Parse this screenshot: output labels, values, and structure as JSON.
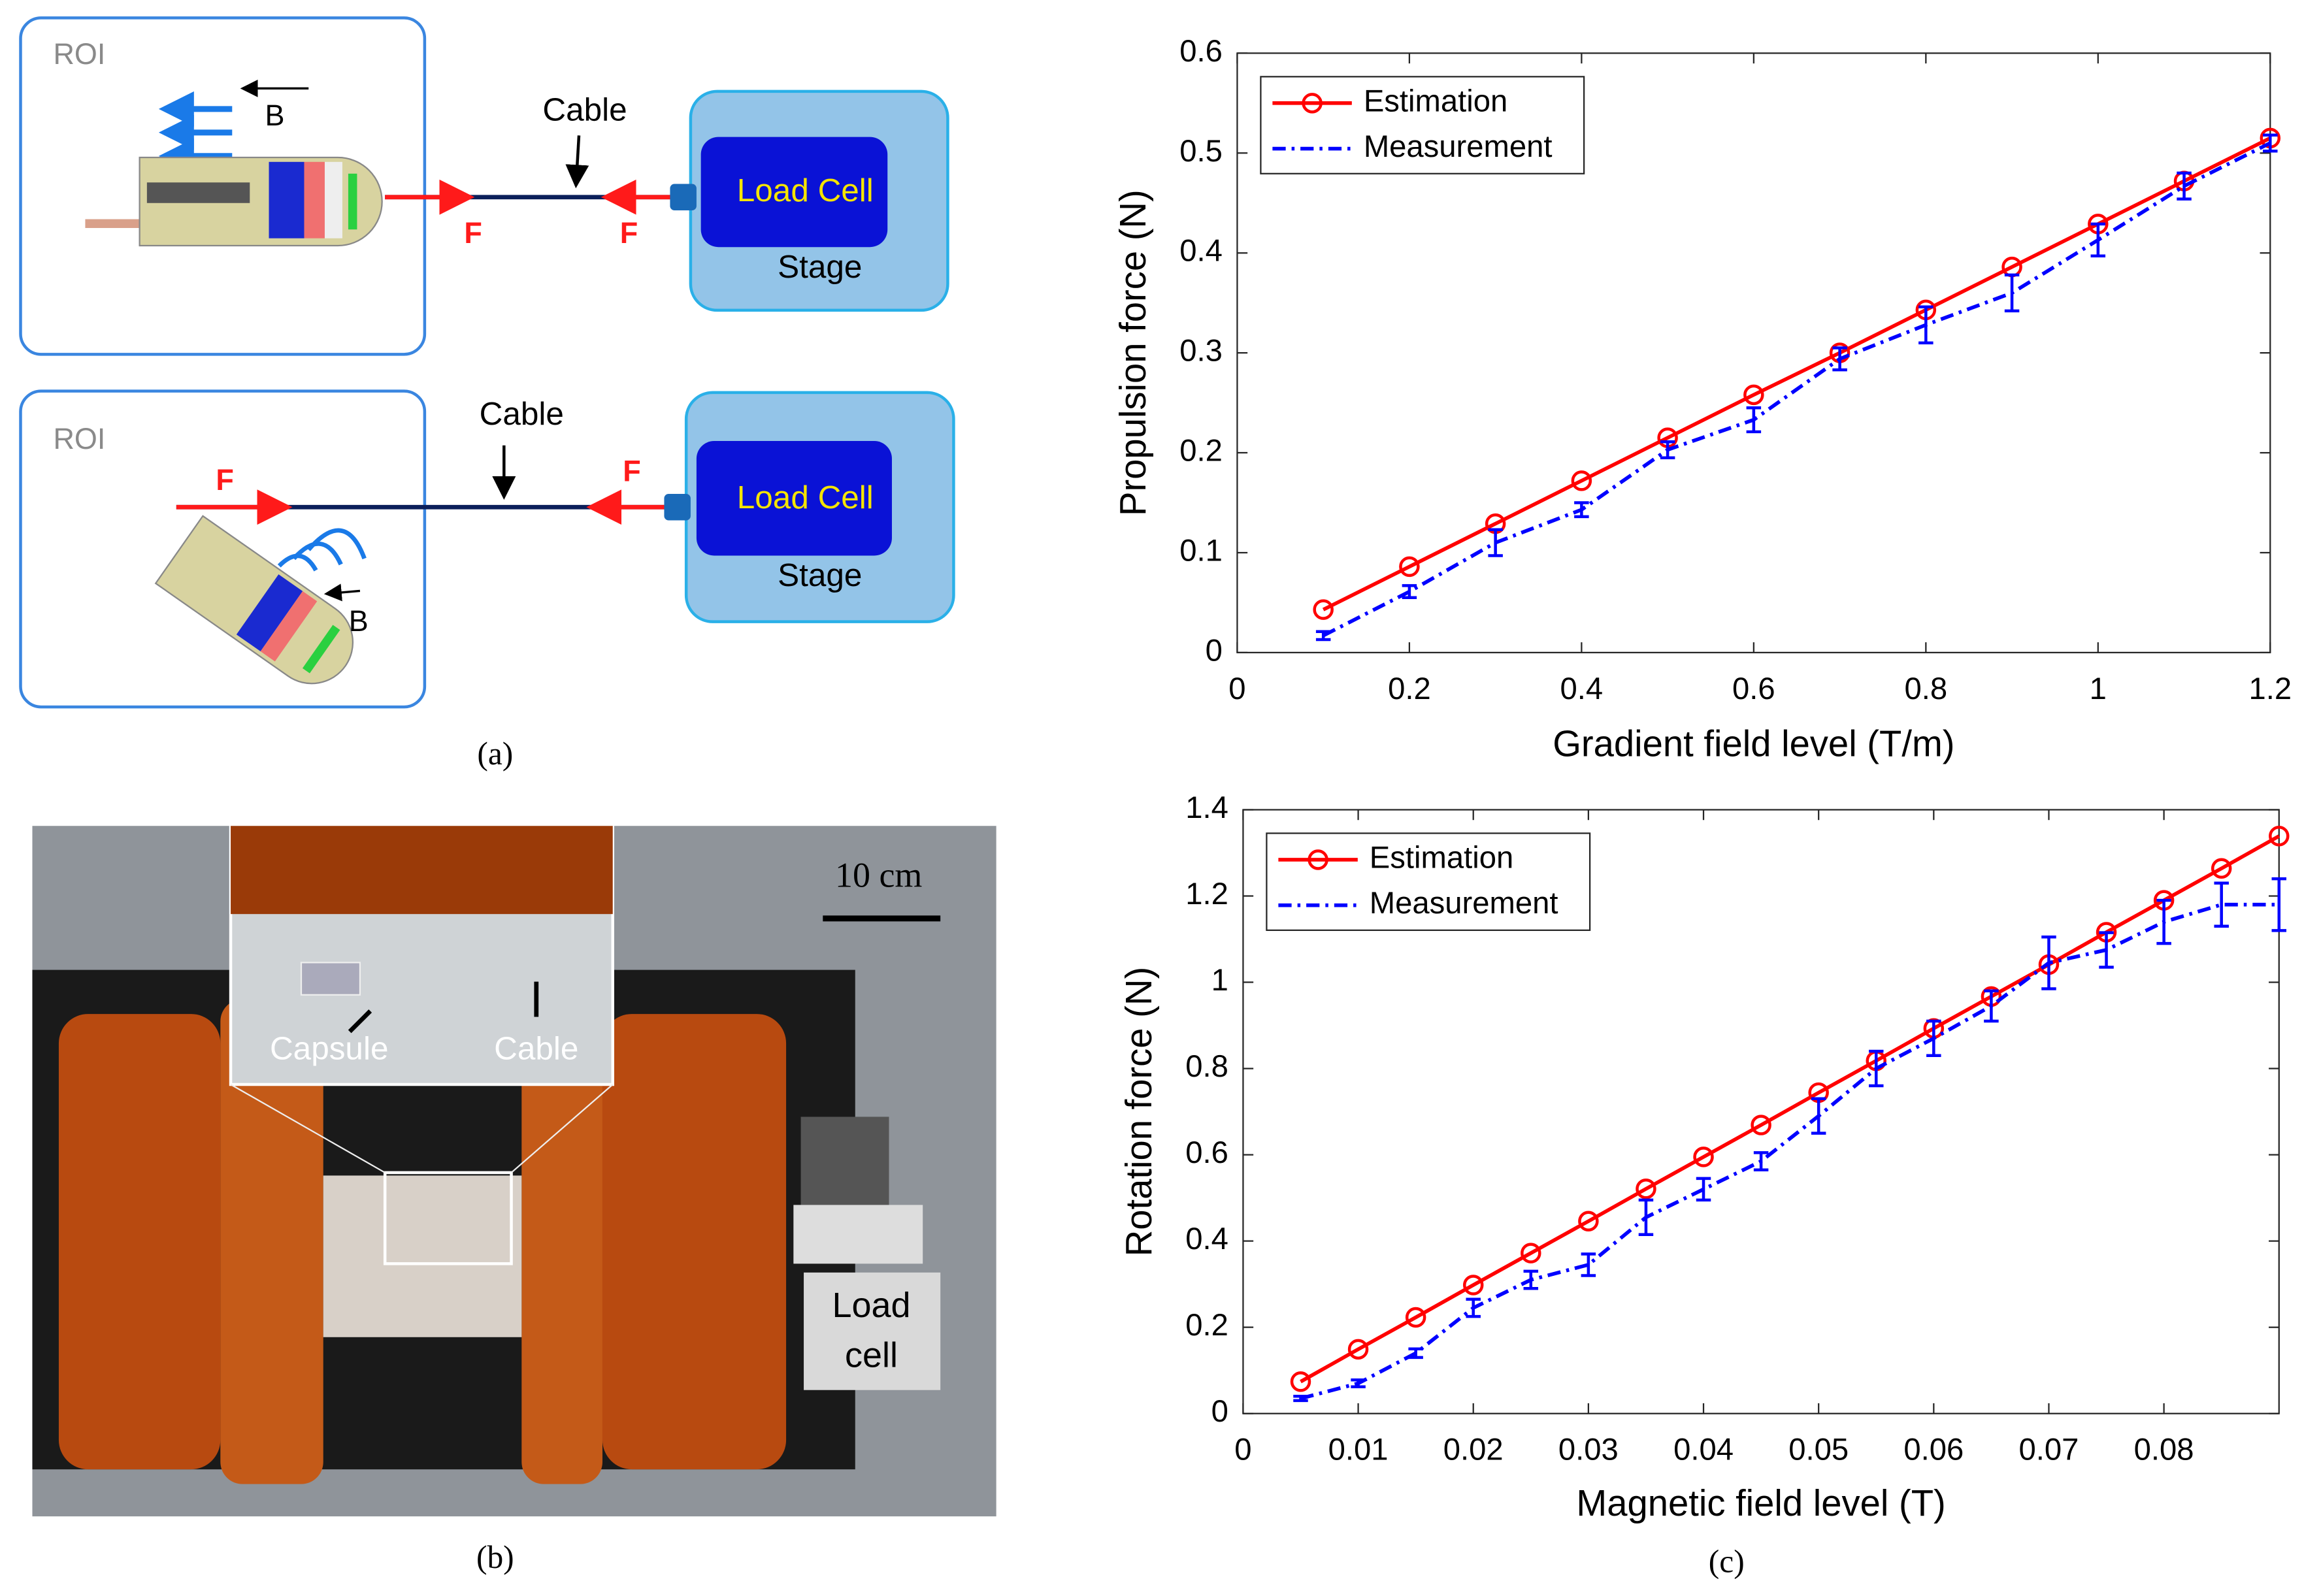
{
  "panels": {
    "a": "(a)",
    "b": "(b)",
    "c": "(c)"
  },
  "diagram": {
    "top": {
      "roi": "ROI",
      "field": "B",
      "cable": "Cable",
      "force_left": "F",
      "force_right": "F",
      "load_cell": "Load Cell",
      "stage": "Stage"
    },
    "bottom": {
      "roi": "ROI",
      "field": "B",
      "cable": "Cable",
      "force_left": "F",
      "force_right": "F",
      "load_cell": "Load Cell",
      "stage": "Stage"
    }
  },
  "photo": {
    "scale_bar": "10 cm",
    "capsule": "Capsule",
    "cable": "Cable",
    "load_cell": [
      "Load",
      "cell"
    ]
  },
  "chart_data": [
    {
      "type": "line",
      "xlabel": "Gradient field level (T/m)",
      "ylabel": "Propulsion force (N)",
      "x": [
        0.1,
        0.2,
        0.3,
        0.4,
        0.5,
        0.6,
        0.7,
        0.8,
        0.9,
        1,
        1.1,
        1.2
      ],
      "series": [
        {
          "name": "Estimation",
          "color": "#ff0000",
          "marker": "o",
          "linestyle": "solid",
          "values": [
            0.043,
            0.086,
            0.129,
            0.172,
            0.215,
            0.258,
            0.3,
            0.343,
            0.386,
            0.429,
            0.472,
            0.515
          ]
        },
        {
          "name": "Measurement",
          "color": "#0000ff",
          "marker": "errorbar",
          "linestyle": "dashdot",
          "values": [
            0.017,
            0.061,
            0.11,
            0.143,
            0.203,
            0.233,
            0.294,
            0.328,
            0.36,
            0.413,
            0.467,
            0.51
          ],
          "errors": [
            0.004,
            0.006,
            0.013,
            0.007,
            0.008,
            0.012,
            0.011,
            0.018,
            0.018,
            0.016,
            0.013,
            0.008
          ]
        }
      ],
      "xlim": [
        0,
        1.2
      ],
      "xticks": [
        0,
        0.2,
        0.4,
        0.6,
        0.8,
        1,
        1.2
      ],
      "ylim": [
        0,
        0.6
      ],
      "yticks": [
        0,
        0.1,
        0.2,
        0.3,
        0.4,
        0.5,
        0.6
      ],
      "legend": "upper left"
    },
    {
      "type": "line",
      "xlabel": "Magnetic field level (T)",
      "ylabel": "Rotation force (N)",
      "x": [
        0.005,
        0.01,
        0.015,
        0.02,
        0.025,
        0.03,
        0.035,
        0.04,
        0.045,
        0.05,
        0.055,
        0.06,
        0.065,
        0.07,
        0.075,
        0.08,
        0.085,
        0.09
      ],
      "series": [
        {
          "name": "Estimation",
          "color": "#ff0000",
          "marker": "o",
          "linestyle": "solid",
          "values": [
            0.074,
            0.149,
            0.223,
            0.298,
            0.372,
            0.446,
            0.521,
            0.595,
            0.669,
            0.744,
            0.818,
            0.893,
            0.967,
            1.041,
            1.116,
            1.19,
            1.264,
            1.339
          ]
        },
        {
          "name": "Measurement",
          "color": "#0000ff",
          "marker": "errorbar",
          "linestyle": "dashdot",
          "values": [
            0.035,
            0.07,
            0.14,
            0.245,
            0.31,
            0.345,
            0.455,
            0.52,
            0.585,
            0.69,
            0.8,
            0.87,
            0.945,
            1.045,
            1.075,
            1.14,
            1.18,
            1.18
          ],
          "errors": [
            0.005,
            0.008,
            0.01,
            0.02,
            0.02,
            0.025,
            0.04,
            0.025,
            0.02,
            0.04,
            0.04,
            0.04,
            0.035,
            0.06,
            0.04,
            0.05,
            0.05,
            0.06
          ]
        }
      ],
      "xlim": [
        0,
        0.09
      ],
      "xticks": [
        0,
        0.01,
        0.02,
        0.03,
        0.04,
        0.05,
        0.06,
        0.07,
        0.08
      ],
      "ylim": [
        0,
        1.4
      ],
      "yticks": [
        0,
        0.2,
        0.4,
        0.6,
        0.8,
        1,
        1.2,
        1.4
      ],
      "legend": "upper left"
    }
  ]
}
